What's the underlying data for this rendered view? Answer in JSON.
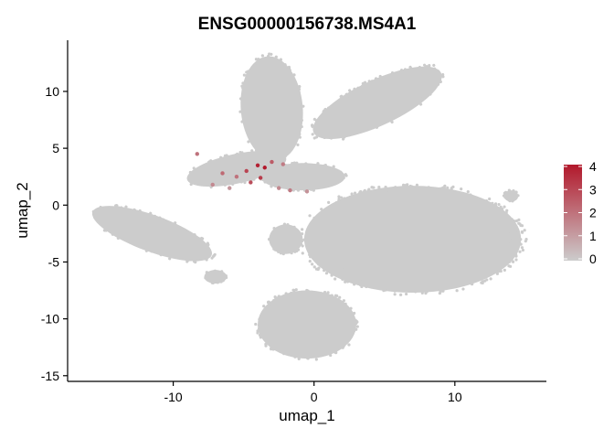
{
  "chart_data": {
    "type": "scatter",
    "title": "ENSG00000156738.MS4A1",
    "xlabel": "umap_1",
    "ylabel": "umap_2",
    "xlim": [
      -17.5,
      16.5
    ],
    "ylim": [
      -15.5,
      14.5
    ],
    "x_ticks": [
      -10,
      0,
      10
    ],
    "y_ticks": [
      -15,
      -10,
      -5,
      0,
      5,
      10
    ],
    "grid": false,
    "legend_position": "right",
    "legend": {
      "type": "colorbar",
      "ticks": [
        0,
        1,
        2,
        3,
        4
      ],
      "low_color": "#cccccc",
      "high_color": "#b2182b"
    },
    "point_color": "#cccccc",
    "clusters": [
      {
        "cx": -11.5,
        "cy": -2.5,
        "rx": 4.5,
        "ry": 1.6,
        "rot": -20
      },
      {
        "cx": -5.5,
        "cy": 3.2,
        "rx": 3.6,
        "ry": 1.3,
        "rot": 12
      },
      {
        "cx": -3.0,
        "cy": 8.5,
        "rx": 2.2,
        "ry": 4.6,
        "rot": 5
      },
      {
        "cx": 4.5,
        "cy": 9.0,
        "rx": 5.0,
        "ry": 2.0,
        "rot": 25
      },
      {
        "cx": 7.0,
        "cy": -3.0,
        "rx": 7.7,
        "ry": 4.7,
        "rot": 0
      },
      {
        "cx": -0.5,
        "cy": -10.5,
        "rx": 3.5,
        "ry": 3.0,
        "rot": 0
      },
      {
        "cx": -0.8,
        "cy": 2.5,
        "rx": 3.0,
        "ry": 1.2,
        "rot": 0
      },
      {
        "cx": -2.0,
        "cy": -3.0,
        "rx": 1.2,
        "ry": 1.3,
        "rot": 0
      },
      {
        "cx": 14.0,
        "cy": 0.8,
        "rx": 0.5,
        "ry": 0.5,
        "rot": 0
      },
      {
        "cx": -7.0,
        "cy": -6.3,
        "rx": 0.8,
        "ry": 0.6,
        "rot": 0
      }
    ],
    "expressing_points": [
      {
        "x": -4.0,
        "y": 3.5,
        "v": 3.8
      },
      {
        "x": -3.5,
        "y": 3.3,
        "v": 4.0
      },
      {
        "x": -4.8,
        "y": 3.0,
        "v": 3.0
      },
      {
        "x": -6.5,
        "y": 2.8,
        "v": 2.2
      },
      {
        "x": -8.3,
        "y": 4.5,
        "v": 2.0
      },
      {
        "x": -3.0,
        "y": 3.8,
        "v": 2.5
      },
      {
        "x": -2.2,
        "y": 3.6,
        "v": 1.8
      },
      {
        "x": -5.5,
        "y": 2.5,
        "v": 2.0
      },
      {
        "x": -7.2,
        "y": 1.8,
        "v": 1.5
      },
      {
        "x": -2.5,
        "y": 1.5,
        "v": 1.5
      },
      {
        "x": -1.7,
        "y": 1.3,
        "v": 1.8
      },
      {
        "x": -0.5,
        "y": 1.2,
        "v": 1.3
      },
      {
        "x": -4.5,
        "y": 2.0,
        "v": 2.8
      },
      {
        "x": -3.8,
        "y": 2.4,
        "v": 3.2
      },
      {
        "x": -6.0,
        "y": 1.5,
        "v": 1.2
      }
    ]
  }
}
